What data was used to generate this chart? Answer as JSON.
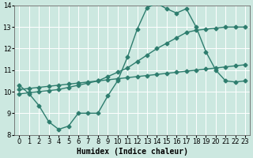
{
  "bg_color": "#cce8e0",
  "grid_color": "#ffffff",
  "line_color": "#2e7d6e",
  "line_width": 1.0,
  "marker": "D",
  "marker_size": 2.5,
  "xlabel": "Humidex (Indice chaleur)",
  "xlabel_fontsize": 7,
  "tick_fontsize": 6,
  "xlim": [
    -0.5,
    23.5
  ],
  "ylim": [
    8,
    14
  ],
  "yticks": [
    8,
    9,
    10,
    11,
    12,
    13,
    14
  ],
  "xticks": [
    0,
    1,
    2,
    3,
    4,
    5,
    6,
    7,
    8,
    9,
    10,
    11,
    12,
    13,
    14,
    15,
    16,
    17,
    18,
    19,
    20,
    21,
    22,
    23
  ],
  "series1_x": [
    0,
    1,
    2,
    3,
    4,
    5,
    6,
    7,
    8,
    9,
    10,
    11,
    12,
    13,
    14,
    15,
    16,
    17,
    18,
    19,
    20,
    21,
    22,
    23
  ],
  "series1_y": [
    10.3,
    9.9,
    9.35,
    8.6,
    8.25,
    8.4,
    9.0,
    9.0,
    9.0,
    9.8,
    10.5,
    11.6,
    12.9,
    13.9,
    14.1,
    13.85,
    13.65,
    13.85,
    13.0,
    11.85,
    11.0,
    10.5,
    10.45,
    10.5
  ],
  "series2_x": [
    0,
    1,
    2,
    3,
    4,
    5,
    6,
    7,
    8,
    9,
    10,
    11,
    12,
    13,
    14,
    15,
    16,
    17,
    18,
    19,
    20,
    21,
    22,
    23
  ],
  "series2_y": [
    10.1,
    10.15,
    10.2,
    10.25,
    10.3,
    10.35,
    10.4,
    10.45,
    10.5,
    10.55,
    10.6,
    10.65,
    10.7,
    10.75,
    10.8,
    10.85,
    10.9,
    10.95,
    11.0,
    11.05,
    11.1,
    11.15,
    11.2,
    11.25
  ],
  "series3_x": [
    0,
    1,
    2,
    3,
    4,
    5,
    6,
    7,
    8,
    9,
    10,
    11,
    12,
    13,
    14,
    15,
    16,
    17,
    18,
    19,
    20,
    21,
    22,
    23
  ],
  "series3_y": [
    9.9,
    9.95,
    10.0,
    10.05,
    10.1,
    10.2,
    10.3,
    10.4,
    10.5,
    10.7,
    10.9,
    11.1,
    11.4,
    11.7,
    12.0,
    12.25,
    12.5,
    12.75,
    12.85,
    12.9,
    12.95,
    13.0,
    13.0,
    13.0
  ]
}
